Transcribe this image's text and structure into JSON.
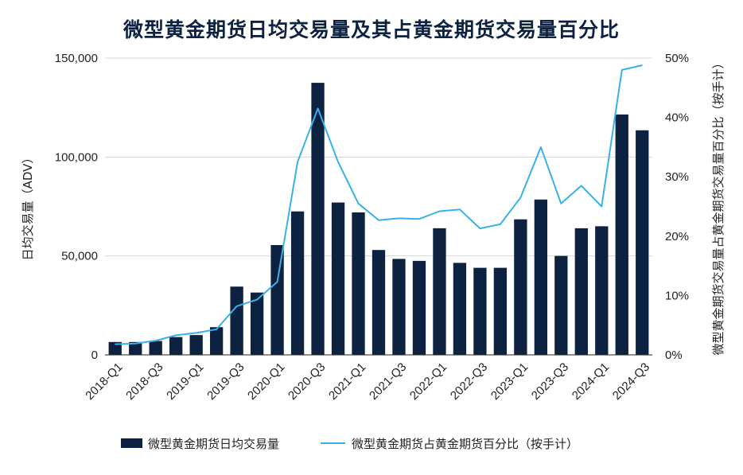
{
  "chart_data": {
    "type": "bar",
    "title": "微型黄金期货日均交易量及其占黄金期货交易量百分比",
    "ylabel": "日均交易量（ADV）",
    "y2label": "微型黄金期货交易量占黄金期货交易量百分比（按手计）",
    "ylim": [
      0,
      150000
    ],
    "y2lim": [
      0,
      50
    ],
    "yticks": [
      "0",
      "50,000",
      "100,000",
      "150,000"
    ],
    "y2ticks": [
      "0%",
      "10%",
      "20%",
      "30%",
      "40%",
      "50%"
    ],
    "xtick_labels": [
      "2018-Q1",
      "2018-Q3",
      "2019-Q1",
      "2019-Q3",
      "2020-Q1",
      "2020-Q3",
      "2021-Q1",
      "2021-Q3",
      "2022-Q1",
      "2022-Q3",
      "2023-Q1",
      "2023-Q3",
      "2024-Q1",
      "2024-Q3"
    ],
    "categories": [
      "2018-Q1",
      "2018-Q2",
      "2018-Q3",
      "2018-Q4",
      "2019-Q1",
      "2019-Q2",
      "2019-Q3",
      "2019-Q4",
      "2020-Q1",
      "2020-Q2",
      "2020-Q3",
      "2020-Q4",
      "2021-Q1",
      "2021-Q2",
      "2021-Q3",
      "2021-Q4",
      "2022-Q1",
      "2022-Q2",
      "2022-Q3",
      "2022-Q4",
      "2023-Q1",
      "2023-Q2",
      "2023-Q3",
      "2023-Q4",
      "2024-Q1",
      "2024-Q2",
      "2024-Q3"
    ],
    "series": [
      {
        "name": "微型黄金期货日均交易量",
        "type": "bar",
        "axis": "left",
        "color": "#0d2240",
        "values": [
          6500,
          6500,
          7000,
          9000,
          10000,
          14000,
          34500,
          31500,
          55500,
          72500,
          137500,
          77000,
          72000,
          53000,
          48500,
          47500,
          64000,
          46500,
          44000,
          44000,
          68500,
          78500,
          50000,
          64000,
          65000,
          121500,
          113500
        ]
      },
      {
        "name": "微型黄金期货占黄金期货百分比（按手计）",
        "type": "line",
        "axis": "right",
        "color": "#3ab0e8",
        "values": [
          1.8,
          1.9,
          2.4,
          3.3,
          3.7,
          4.3,
          8.2,
          9.3,
          12.3,
          32.5,
          41.5,
          32.5,
          25.5,
          22.7,
          23.0,
          22.9,
          24.2,
          24.5,
          21.3,
          22.0,
          26.5,
          35.0,
          25.5,
          28.5,
          25.0,
          48.0,
          48.8
        ]
      }
    ],
    "legend": {
      "placement": "bottom"
    },
    "grid": true
  }
}
